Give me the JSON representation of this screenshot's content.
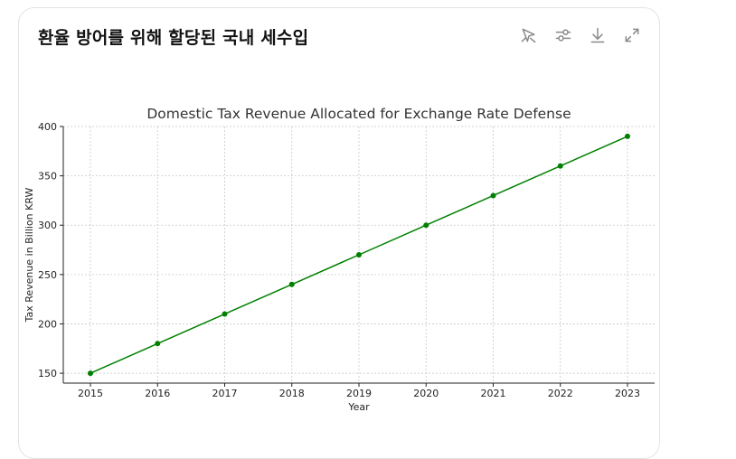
{
  "card": {
    "title": "환율 방어를 위해 할당된 국내 세수입"
  },
  "toolbar": {
    "buttons": [
      {
        "icon": "interactive-chart-icon",
        "label": "interactive"
      },
      {
        "icon": "sliders-icon",
        "label": "customize"
      },
      {
        "icon": "download-icon",
        "label": "download"
      },
      {
        "icon": "expand-icon",
        "label": "expand"
      }
    ]
  },
  "colors": {
    "line": "#008000",
    "grid": "#c8c8c8",
    "axis": "#222222",
    "icon": "#8a8a8a"
  },
  "chart_data": {
    "type": "line",
    "title": "Domestic Tax Revenue Allocated for Exchange Rate Defense",
    "xlabel": "Year",
    "ylabel": "Tax Revenue in Billion KRW",
    "x": [
      2015,
      2016,
      2017,
      2018,
      2019,
      2020,
      2021,
      2022,
      2023
    ],
    "series": [
      {
        "name": "Tax Revenue",
        "values": [
          150,
          180,
          210,
          240,
          270,
          300,
          330,
          360,
          390
        ]
      }
    ],
    "ylim": [
      140,
      400
    ],
    "yticks": [
      150,
      200,
      250,
      300,
      350,
      400
    ],
    "xticks": [
      "2015",
      "2016",
      "2017",
      "2018",
      "2019",
      "2020",
      "2021",
      "2022",
      "2023"
    ],
    "grid": true,
    "marker": "circle"
  }
}
